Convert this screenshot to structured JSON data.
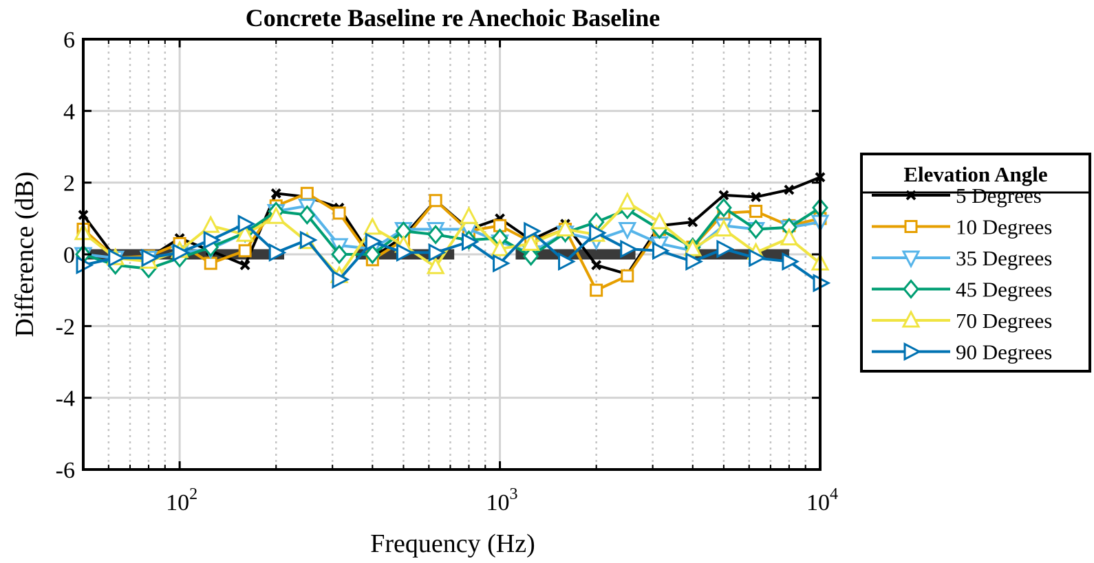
{
  "chart_data": {
    "type": "line",
    "title": "Concrete Baseline re Anechoic Baseline",
    "xlabel": "Frequency (Hz)",
    "ylabel": "Difference (dB)",
    "x_scale": "log",
    "xlim": [
      50,
      10000
    ],
    "ylim": [
      -6,
      6
    ],
    "x_ticks": [
      {
        "base": "10",
        "exp": "2",
        "value": 100
      },
      {
        "base": "10",
        "exp": "3",
        "value": 1000
      },
      {
        "base": "10",
        "exp": "4",
        "value": 10000
      }
    ],
    "y_ticks": [
      "6",
      "4",
      "2",
      "0",
      "-2",
      "-4",
      "-6"
    ],
    "y_tick_values": [
      6,
      4,
      2,
      0,
      -2,
      -4,
      -6
    ],
    "grid": true,
    "legend_title": "Elevation Angle",
    "legend_position": "right",
    "x": [
      50,
      63,
      80,
      100,
      125,
      160,
      200,
      250,
      315,
      400,
      500,
      630,
      800,
      1000,
      1250,
      1600,
      2000,
      2500,
      3150,
      4000,
      5000,
      6300,
      8000,
      10000
    ],
    "series": [
      {
        "name": "5 Degrees",
        "color": "#000000",
        "marker": "x",
        "values": [
          1.1,
          -0.1,
          -0.1,
          0.45,
          0.1,
          -0.3,
          1.7,
          1.6,
          1.3,
          -0.1,
          0.5,
          1.5,
          0.7,
          1.0,
          0.4,
          0.85,
          -0.3,
          -0.55,
          0.8,
          0.9,
          1.65,
          1.6,
          1.8,
          2.15
        ]
      },
      {
        "name": "10 Degrees",
        "color": "#E69F00",
        "marker": "square",
        "values": [
          0.7,
          -0.1,
          -0.05,
          0.3,
          -0.25,
          0.1,
          1.35,
          1.7,
          1.15,
          -0.15,
          0.4,
          1.5,
          0.65,
          0.8,
          0.35,
          0.7,
          -1.0,
          -0.6,
          0.7,
          0.2,
          1.15,
          1.2,
          0.8,
          1.0
        ]
      },
      {
        "name": "35 Degrees",
        "color": "#56B4E9",
        "marker": "triangle-down",
        "values": [
          0.0,
          -0.1,
          -0.1,
          0.05,
          0.15,
          0.6,
          1.2,
          1.35,
          0.25,
          0.15,
          0.7,
          0.7,
          0.7,
          0.35,
          0.05,
          0.6,
          0.4,
          0.7,
          0.3,
          0.1,
          0.8,
          0.7,
          0.75,
          0.9
        ]
      },
      {
        "name": "45 Degrees",
        "color": "#009E73",
        "marker": "diamond",
        "values": [
          0.0,
          -0.3,
          -0.4,
          -0.1,
          0.2,
          0.6,
          1.2,
          1.1,
          0.0,
          0.0,
          0.65,
          0.55,
          0.4,
          0.45,
          -0.05,
          0.6,
          0.9,
          1.25,
          0.7,
          0.2,
          1.3,
          0.7,
          0.75,
          1.3
        ]
      },
      {
        "name": "70 Degrees",
        "color": "#F0E442",
        "marker": "triangle-up",
        "values": [
          0.6,
          -0.1,
          -0.2,
          0.1,
          0.8,
          0.55,
          1.05,
          0.35,
          -0.6,
          0.75,
          0.25,
          -0.35,
          1.05,
          0.15,
          0.3,
          0.7,
          0.55,
          1.45,
          0.9,
          0.15,
          0.7,
          0.05,
          0.45,
          -0.25
        ]
      },
      {
        "name": "90 Degrees",
        "color": "#0072B2",
        "marker": "triangle-right",
        "values": [
          -0.3,
          -0.1,
          -0.1,
          0.05,
          0.4,
          0.85,
          0.05,
          0.4,
          -0.7,
          0.35,
          0.05,
          0.05,
          0.35,
          -0.25,
          0.65,
          -0.2,
          0.6,
          0.15,
          0.1,
          -0.2,
          0.15,
          -0.1,
          -0.2,
          -0.8
        ]
      }
    ],
    "baseline_bars": [
      {
        "x_start": 50,
        "x_end": 212,
        "y": 0
      },
      {
        "x_start": 355,
        "x_end": 720,
        "y": 0
      },
      {
        "x_start": 1120,
        "x_end": 2650,
        "y": 0
      },
      {
        "x_start": 3800,
        "x_end": 8000,
        "y": 0
      }
    ]
  }
}
